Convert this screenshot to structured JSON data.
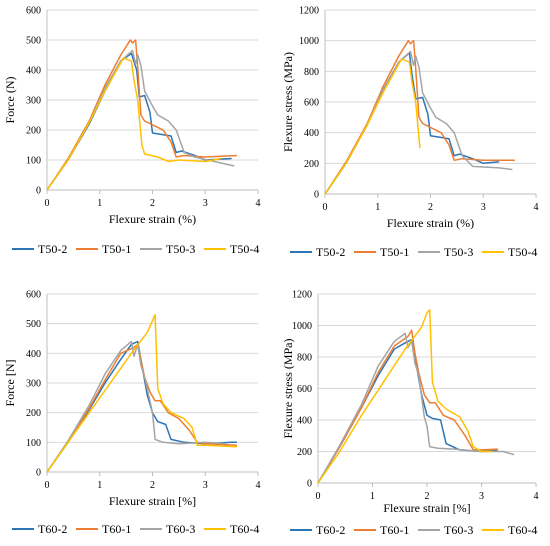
{
  "colors": {
    "blue": "#2e75b6",
    "orange": "#ed7d31",
    "gray": "#a5a5a5",
    "yellow": "#ffc000"
  },
  "chart_data": [
    {
      "type": "line",
      "xlabel": "Flexure strain  (%)",
      "ylabel": "Force (N)",
      "xlim": [
        0,
        4
      ],
      "ylim": [
        0,
        600
      ],
      "xticks": [
        "0",
        "1",
        "2",
        "3",
        "4"
      ],
      "yticks": [
        "0",
        "100",
        "200",
        "300",
        "400",
        "500",
        "600"
      ],
      "legend_position": "bottom",
      "series": [
        {
          "name": "T50-2",
          "color": "blue",
          "x": [
            0,
            0.4,
            0.8,
            1.1,
            1.4,
            1.6,
            1.7,
            1.75,
            1.85,
            1.95,
            2.0,
            2.35,
            2.45,
            2.55,
            2.8,
            3.0,
            3.5
          ],
          "y": [
            0,
            100,
            220,
            330,
            430,
            455,
            400,
            310,
            315,
            260,
            190,
            180,
            125,
            130,
            115,
            100,
            105
          ]
        },
        {
          "name": "T50-1",
          "color": "orange",
          "x": [
            0,
            0.4,
            0.8,
            1.1,
            1.4,
            1.58,
            1.62,
            1.68,
            1.72,
            1.78,
            1.85,
            2.2,
            2.35,
            2.45,
            2.6,
            3.0,
            3.6
          ],
          "y": [
            0,
            105,
            230,
            350,
            450,
            500,
            490,
            500,
            410,
            250,
            230,
            200,
            160,
            110,
            115,
            110,
            115
          ]
        },
        {
          "name": "T50-3",
          "color": "gray",
          "x": [
            0,
            0.4,
            0.8,
            1.1,
            1.4,
            1.62,
            1.68,
            1.72,
            1.78,
            1.85,
            2.0,
            2.1,
            2.3,
            2.45,
            2.6,
            2.8,
            3.3,
            3.55
          ],
          "y": [
            0,
            100,
            225,
            340,
            430,
            465,
            420,
            450,
            415,
            330,
            280,
            250,
            230,
            200,
            125,
            110,
            90,
            80
          ]
        },
        {
          "name": "T50-4",
          "color": "yellow",
          "x": [
            0,
            0.4,
            0.8,
            1.1,
            1.45,
            1.6,
            1.65,
            1.72,
            1.8,
            1.85,
            2.1,
            2.3,
            2.5,
            3.0,
            3.3
          ],
          "y": [
            0,
            100,
            225,
            330,
            440,
            430,
            365,
            300,
            150,
            120,
            110,
            95,
            100,
            95,
            105
          ]
        }
      ]
    },
    {
      "type": "line",
      "xlabel": "Flexure strain  (%)",
      "ylabel": "Flexure stress (MPa)",
      "xlim": [
        0,
        4
      ],
      "ylim": [
        0,
        1200
      ],
      "xticks": [
        "0",
        "1",
        "2",
        "3",
        "4"
      ],
      "yticks": [
        "0",
        "200",
        "400",
        "600",
        "800",
        "1000",
        "1200"
      ],
      "legend_position": "bottom",
      "series": [
        {
          "name": "T50-2",
          "color": "blue",
          "x": [
            0,
            0.4,
            0.8,
            1.1,
            1.4,
            1.6,
            1.65,
            1.72,
            1.85,
            1.95,
            2.0,
            2.35,
            2.45,
            2.55,
            2.8,
            3.0,
            3.3
          ],
          "y": [
            0,
            200,
            450,
            680,
            860,
            920,
            780,
            620,
            630,
            520,
            380,
            360,
            250,
            260,
            230,
            200,
            210
          ]
        },
        {
          "name": "T50-1",
          "color": "orange",
          "x": [
            0,
            0.4,
            0.8,
            1.1,
            1.4,
            1.58,
            1.62,
            1.68,
            1.72,
            1.78,
            1.85,
            2.2,
            2.35,
            2.45,
            2.6,
            3.0,
            3.6
          ],
          "y": [
            0,
            210,
            460,
            700,
            900,
            1000,
            980,
            1000,
            820,
            500,
            460,
            400,
            320,
            220,
            230,
            220,
            220
          ]
        },
        {
          "name": "T50-3",
          "color": "gray",
          "x": [
            0,
            0.4,
            0.8,
            1.1,
            1.4,
            1.62,
            1.68,
            1.72,
            1.78,
            1.85,
            2.0,
            2.1,
            2.3,
            2.45,
            2.6,
            2.8,
            3.3,
            3.55
          ],
          "y": [
            0,
            200,
            450,
            680,
            860,
            930,
            840,
            900,
            830,
            660,
            560,
            500,
            460,
            400,
            250,
            180,
            170,
            160
          ]
        },
        {
          "name": "T50-4",
          "color": "yellow",
          "x": [
            0,
            0.4,
            0.8,
            1.1,
            1.45,
            1.6,
            1.65,
            1.72,
            1.8
          ],
          "y": [
            0,
            200,
            450,
            660,
            880,
            860,
            730,
            600,
            300
          ]
        }
      ]
    },
    {
      "type": "line",
      "xlabel": "Flexure strain [%]",
      "ylabel": "Force [N]",
      "xlim": [
        0,
        4
      ],
      "ylim": [
        0,
        600
      ],
      "xticks": [
        "0",
        "1",
        "2",
        "3",
        "4"
      ],
      "yticks": [
        "0",
        "100",
        "200",
        "300",
        "400",
        "500",
        "600"
      ],
      "legend_position": "bottom",
      "series": [
        {
          "name": "T60-2",
          "color": "blue",
          "x": [
            0,
            0.4,
            0.8,
            1.1,
            1.4,
            1.6,
            1.72,
            1.78,
            1.83,
            1.9,
            2.0,
            2.1,
            2.25,
            2.35,
            2.6,
            3.0,
            3.5,
            3.6
          ],
          "y": [
            0,
            100,
            210,
            300,
            380,
            430,
            440,
            380,
            330,
            260,
            200,
            170,
            160,
            110,
            100,
            95,
            100,
            100
          ]
        },
        {
          "name": "T60-1",
          "color": "orange",
          "x": [
            0,
            0.4,
            0.8,
            1.1,
            1.4,
            1.65,
            1.72,
            1.78,
            1.85,
            1.95,
            2.05,
            2.15,
            2.3,
            2.5,
            2.7,
            2.85,
            3.0,
            3.6
          ],
          "y": [
            0,
            100,
            215,
            310,
            400,
            420,
            430,
            380,
            320,
            270,
            240,
            240,
            200,
            180,
            140,
            100,
            95,
            90
          ]
        },
        {
          "name": "T60-3",
          "color": "gray",
          "x": [
            0,
            0.4,
            0.8,
            1.1,
            1.4,
            1.6,
            1.65,
            1.72,
            1.78,
            1.85,
            1.95,
            2.0,
            2.05,
            2.2,
            2.5,
            3.0,
            3.4
          ],
          "y": [
            0,
            105,
            225,
            330,
            410,
            440,
            390,
            430,
            360,
            320,
            240,
            200,
            110,
            100,
            95,
            100,
            95
          ]
        },
        {
          "name": "T60-4",
          "color": "yellow",
          "x": [
            0,
            0.4,
            0.8,
            1.2,
            1.6,
            1.9,
            2.0,
            2.05,
            2.1,
            2.2,
            2.35,
            2.6,
            2.75,
            2.85,
            3.0,
            3.6
          ],
          "y": [
            0,
            100,
            200,
            300,
            400,
            470,
            510,
            530,
            280,
            230,
            200,
            180,
            150,
            90,
            90,
            85
          ]
        }
      ]
    },
    {
      "type": "line",
      "xlabel": "Flexure strain  [%]",
      "ylabel": "Flexure stress (MPa)",
      "xlim": [
        0,
        4
      ],
      "ylim": [
        0,
        1200
      ],
      "xticks": [
        "0",
        "1",
        "2",
        "3",
        "4"
      ],
      "yticks": [
        "0",
        "200",
        "400",
        "600",
        "800",
        "1000",
        "1200"
      ],
      "legend_position": "bottom",
      "series": [
        {
          "name": "T60-2",
          "color": "blue",
          "x": [
            0,
            0.4,
            0.8,
            1.1,
            1.4,
            1.6,
            1.72,
            1.78,
            1.83,
            1.9,
            2.0,
            2.1,
            2.25,
            2.35,
            2.6,
            3.0,
            3.3
          ],
          "y": [
            0,
            230,
            480,
            680,
            850,
            890,
            910,
            820,
            700,
            560,
            430,
            410,
            400,
            250,
            210,
            200,
            210
          ]
        },
        {
          "name": "T60-1",
          "color": "orange",
          "x": [
            0,
            0.4,
            0.8,
            1.1,
            1.4,
            1.65,
            1.72,
            1.78,
            1.85,
            1.95,
            2.05,
            2.15,
            2.3,
            2.5,
            2.7,
            2.85,
            3.0,
            3.3
          ],
          "y": [
            0,
            230,
            480,
            700,
            870,
            930,
            970,
            820,
            700,
            560,
            510,
            510,
            430,
            400,
            300,
            210,
            210,
            215
          ]
        },
        {
          "name": "T60-3",
          "color": "gray",
          "x": [
            0,
            0.4,
            0.8,
            1.1,
            1.4,
            1.6,
            1.65,
            1.72,
            1.78,
            1.85,
            1.95,
            2.0,
            2.05,
            2.2,
            2.5,
            3.0,
            3.4,
            3.6
          ],
          "y": [
            0,
            240,
            500,
            740,
            900,
            950,
            860,
            900,
            760,
            680,
            420,
            360,
            230,
            220,
            215,
            200,
            200,
            180
          ]
        },
        {
          "name": "T60-4",
          "color": "yellow",
          "x": [
            0,
            0.4,
            0.8,
            1.2,
            1.6,
            1.9,
            2.0,
            2.05,
            2.1,
            2.2,
            2.35,
            2.6,
            2.75,
            2.85,
            3.0,
            3.2
          ],
          "y": [
            0,
            200,
            430,
            640,
            850,
            990,
            1080,
            1100,
            640,
            520,
            470,
            420,
            330,
            230,
            200,
            200
          ]
        }
      ]
    }
  ]
}
